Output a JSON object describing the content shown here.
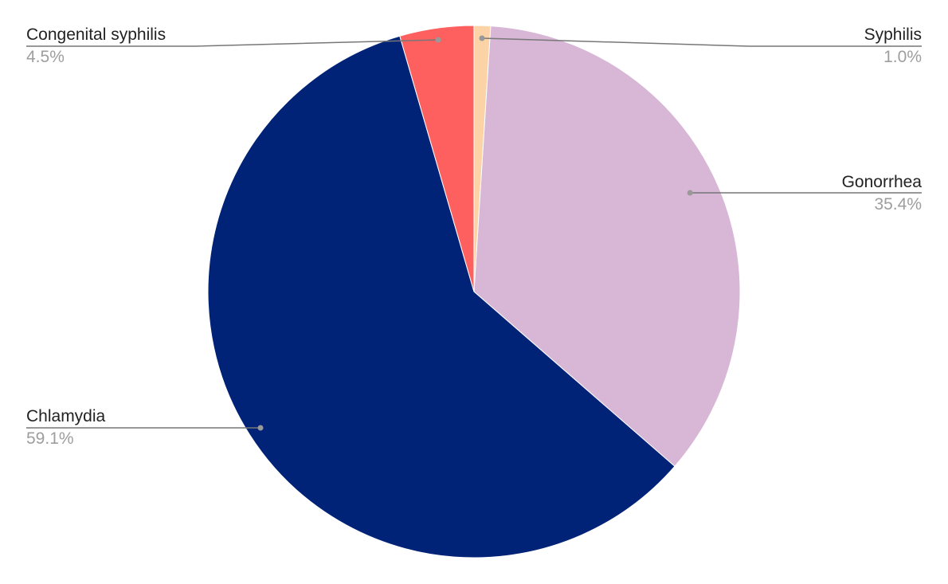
{
  "chart_data": {
    "type": "pie",
    "title": "",
    "slices": [
      {
        "label": "Syphilis",
        "value": 1.0,
        "value_label": "1.0%",
        "color": "#fcd3a6",
        "label_side": "right"
      },
      {
        "label": "Gonorrhea",
        "value": 35.4,
        "value_label": "35.4%",
        "color": "#d7b6d6",
        "label_side": "right"
      },
      {
        "label": "Chlamydia",
        "value": 59.1,
        "value_label": "59.1%",
        "color": "#002277",
        "label_side": "left"
      },
      {
        "label": "Congenital syphilis",
        "value": 4.5,
        "value_label": "4.5%",
        "color": "#fd605e",
        "label_side": "left"
      }
    ],
    "start_angle": "12 o'clock",
    "direction": "clockwise",
    "legend": "none",
    "labels": "outside with leader lines"
  }
}
